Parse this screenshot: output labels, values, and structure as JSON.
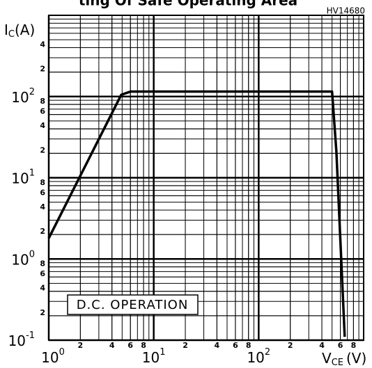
{
  "chart_data": {
    "type": "line",
    "title": "ting Of Safe Operating Area",
    "code": "HV14680",
    "ylabel": [
      "I",
      "C",
      "(A)"
    ],
    "xlabel": [
      "V",
      "CE",
      "(V)"
    ],
    "annotation": "D.C. OPERATION",
    "log_x": true,
    "log_y": true,
    "grid": true,
    "minor_grid": true,
    "xlim": [
      1,
      1000
    ],
    "ylim": [
      0.1,
      1000
    ],
    "xticks": [
      {
        "value": 1,
        "base": "10",
        "exponent": "0"
      },
      {
        "value": 2,
        "label": "2"
      },
      {
        "value": 4,
        "label": "4"
      },
      {
        "value": 6,
        "label": "6"
      },
      {
        "value": 8,
        "label": "8"
      },
      {
        "value": 10,
        "base": "10",
        "exponent": "1"
      },
      {
        "value": 20,
        "label": "2"
      },
      {
        "value": 40,
        "label": "4"
      },
      {
        "value": 60,
        "label": "6"
      },
      {
        "value": 80,
        "label": "8"
      },
      {
        "value": 100,
        "base": "10",
        "exponent": "2"
      },
      {
        "value": 200,
        "label": "2"
      },
      {
        "value": 400,
        "label": "4"
      },
      {
        "value": 600,
        "label": "6"
      },
      {
        "value": 800,
        "label": "8"
      }
    ],
    "yticks": [
      {
        "value": 0.1,
        "base": "10",
        "exponent": "-1"
      },
      {
        "value": 0.2,
        "label": "2"
      },
      {
        "value": 0.4,
        "label": "4"
      },
      {
        "value": 0.6,
        "label": "6"
      },
      {
        "value": 0.8,
        "label": "8"
      },
      {
        "value": 1,
        "base": "10",
        "exponent": "0"
      },
      {
        "value": 2,
        "label": "2"
      },
      {
        "value": 4,
        "label": "4"
      },
      {
        "value": 6,
        "label": "6"
      },
      {
        "value": 8,
        "label": "8"
      },
      {
        "value": 10,
        "base": "10",
        "exponent": "1"
      },
      {
        "value": 20,
        "label": "2"
      },
      {
        "value": 40,
        "label": "4"
      },
      {
        "value": 60,
        "label": "6"
      },
      {
        "value": 80,
        "label": "8"
      },
      {
        "value": 100,
        "base": "10",
        "exponent": "2"
      },
      {
        "value": 200,
        "label": "2"
      },
      {
        "value": 400,
        "label": "4"
      }
    ],
    "x": [
      1,
      4.9,
      6,
      500,
      550,
      660
    ],
    "series": [
      {
        "color": "#000000",
        "values": [
          1.8,
          105,
          115,
          115,
          21,
          0.11
        ]
      }
    ]
  }
}
